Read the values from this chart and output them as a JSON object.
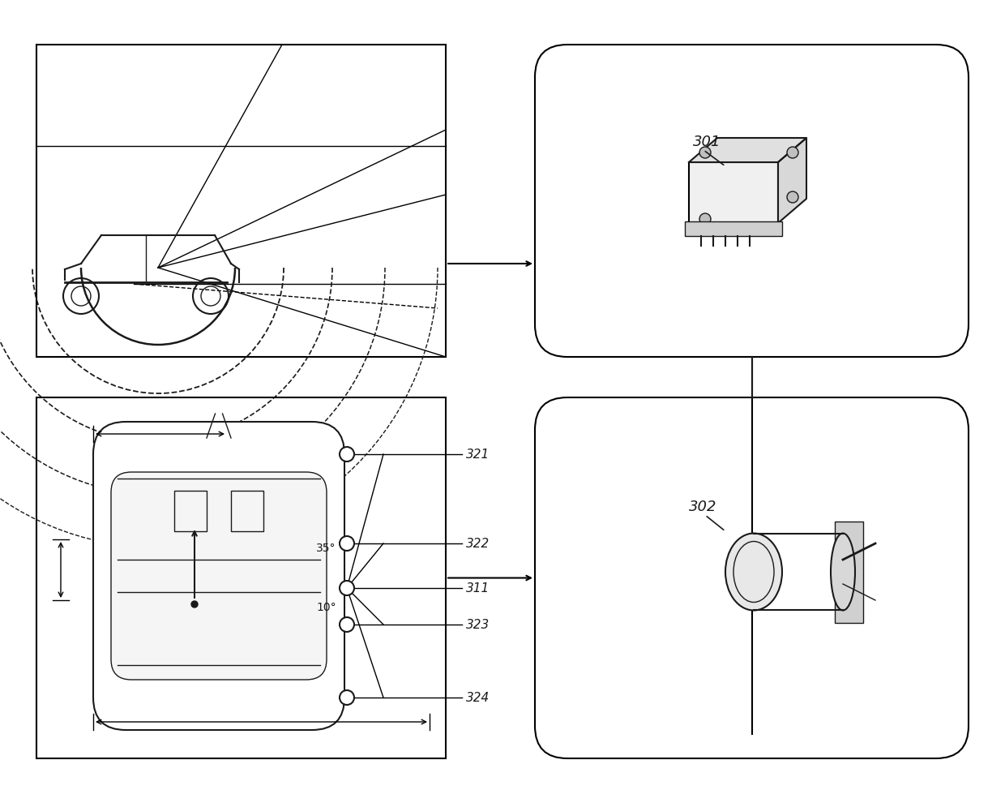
{
  "bg_color": "#ffffff",
  "line_color": "#1a1a1a",
  "label_301": "301",
  "label_302": "302",
  "label_321": "321",
  "label_322": "322",
  "label_311": "311",
  "label_323": "323",
  "label_324": "324",
  "angle_35": "35°",
  "angle_10": "10°",
  "fig_width": 12.4,
  "fig_height": 9.74
}
